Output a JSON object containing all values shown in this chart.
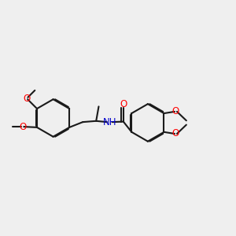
{
  "bg_color": "#efefef",
  "bond_color": "#1a1a1a",
  "oxygen_color": "#ff0000",
  "nitrogen_color": "#0000cc",
  "bond_width": 1.5,
  "font_size_atom": 8.5,
  "xlim": [
    -0.05,
    1.05
  ],
  "ylim": [
    0.18,
    0.82
  ]
}
